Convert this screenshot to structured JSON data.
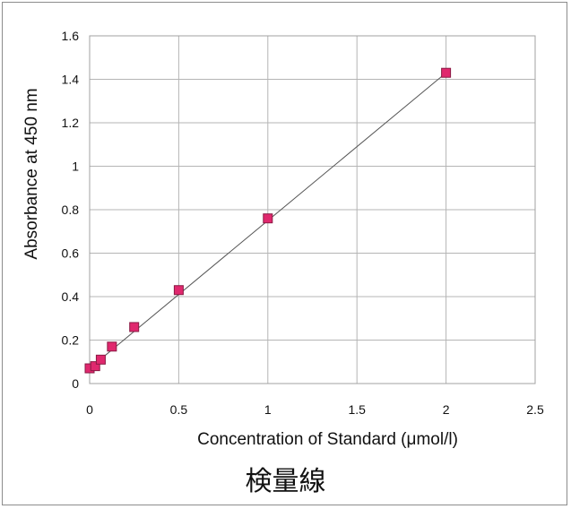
{
  "chart_data": {
    "type": "scatter",
    "title": "",
    "xlabel": "Concentration of Standard (μmol/l)",
    "ylabel": "Absorbance at 450 nm",
    "xlim": [
      0,
      2.5
    ],
    "ylim": [
      0,
      1.6
    ],
    "x_ticks": [
      "0",
      "0.5",
      "1",
      "1.5",
      "2",
      "2.5"
    ],
    "y_ticks": [
      "0",
      "0.2",
      "0.4",
      "0.6",
      "0.8",
      "1",
      "1.2",
      "1.4",
      "1.6"
    ],
    "grid": true,
    "marker_color": "#e0286e",
    "marker_edge": "#8a1a44",
    "trendline_color": "#555555",
    "trendline": {
      "x": [
        0,
        2.0
      ],
      "y": [
        0.07,
        1.43
      ]
    },
    "series": [
      {
        "points": [
          {
            "x": 0,
            "y": 0.07
          },
          {
            "x": 0.03125,
            "y": 0.08
          },
          {
            "x": 0.0625,
            "y": 0.11
          },
          {
            "x": 0.125,
            "y": 0.17
          },
          {
            "x": 0.25,
            "y": 0.26
          },
          {
            "x": 0.5,
            "y": 0.43
          },
          {
            "x": 1.0,
            "y": 0.76
          },
          {
            "x": 2.0,
            "y": 1.43
          }
        ]
      }
    ]
  },
  "caption": "検量線"
}
